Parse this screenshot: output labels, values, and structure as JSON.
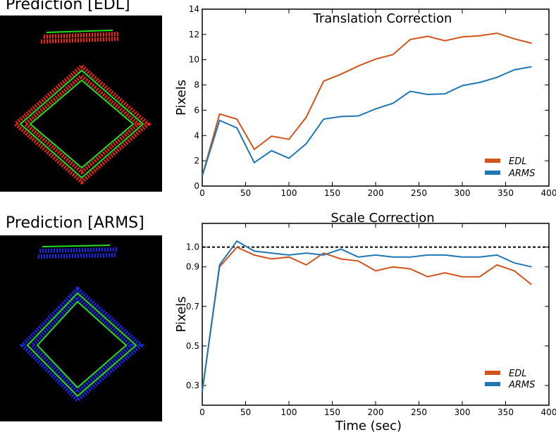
{
  "panels": {
    "edl_title": "Prediction [EDL]",
    "arms_title": "Prediction [ARMS]"
  },
  "colors": {
    "edl": "#d0541b",
    "arms": "#1f77b4",
    "edl_points": "#ff2a1a",
    "arms_points": "#1c2bff",
    "ground_truth": "#22dd22"
  },
  "chart_data": [
    {
      "type": "line",
      "title": "Translation Correction",
      "xlabel": "",
      "ylabel": "Pixels",
      "xlim": [
        0,
        400
      ],
      "ylim": [
        0,
        14
      ],
      "xticks": [
        0,
        50,
        100,
        150,
        200,
        250,
        300,
        350,
        400
      ],
      "yticks": [
        0,
        2,
        4,
        6,
        8,
        10,
        12,
        14
      ],
      "x": [
        0,
        20,
        40,
        60,
        80,
        100,
        120,
        140,
        160,
        180,
        200,
        220,
        240,
        260,
        280,
        300,
        320,
        340,
        360,
        380
      ],
      "series": [
        {
          "name": "EDL",
          "values": [
            0.8,
            5.7,
            5.3,
            2.9,
            3.95,
            3.7,
            5.45,
            8.3,
            8.85,
            9.5,
            10.05,
            10.4,
            11.6,
            11.85,
            11.5,
            11.8,
            11.9,
            12.1,
            11.65,
            11.3
          ]
        },
        {
          "name": "ARMS",
          "values": [
            0.8,
            5.2,
            4.6,
            1.85,
            2.8,
            2.2,
            3.35,
            5.3,
            5.5,
            5.55,
            6.1,
            6.55,
            7.5,
            7.25,
            7.3,
            7.95,
            8.2,
            8.6,
            9.2,
            9.45
          ]
        }
      ],
      "legend": "bottom-right",
      "grid": false
    },
    {
      "type": "line",
      "title": "Scale Correction",
      "xlabel": "Time (sec)",
      "ylabel": "Pixels",
      "xlim": [
        0,
        400
      ],
      "ylim": [
        0.2,
        1.12
      ],
      "xticks": [
        0,
        50,
        100,
        150,
        200,
        250,
        300,
        350,
        400
      ],
      "yticks": [
        0.3,
        0.5,
        0.7,
        0.9,
        1.0
      ],
      "ytick_labels": [
        "0.3",
        "0.5",
        "0.7",
        "0.9",
        "1.0"
      ],
      "reference_line": 1.0,
      "x": [
        0,
        20,
        40,
        60,
        80,
        100,
        120,
        140,
        160,
        180,
        200,
        220,
        240,
        260,
        280,
        300,
        320,
        340,
        360,
        380
      ],
      "series": [
        {
          "name": "EDL",
          "values": [
            0.27,
            0.9,
            1.0,
            0.96,
            0.94,
            0.95,
            0.91,
            0.97,
            0.94,
            0.93,
            0.88,
            0.9,
            0.89,
            0.85,
            0.87,
            0.85,
            0.85,
            0.91,
            0.88,
            0.81
          ]
        },
        {
          "name": "ARMS",
          "values": [
            0.27,
            0.91,
            1.03,
            0.98,
            0.97,
            0.96,
            0.97,
            0.96,
            0.99,
            0.95,
            0.96,
            0.95,
            0.95,
            0.96,
            0.96,
            0.95,
            0.95,
            0.96,
            0.92,
            0.9
          ]
        }
      ],
      "legend": "bottom-right",
      "grid": false
    }
  ]
}
